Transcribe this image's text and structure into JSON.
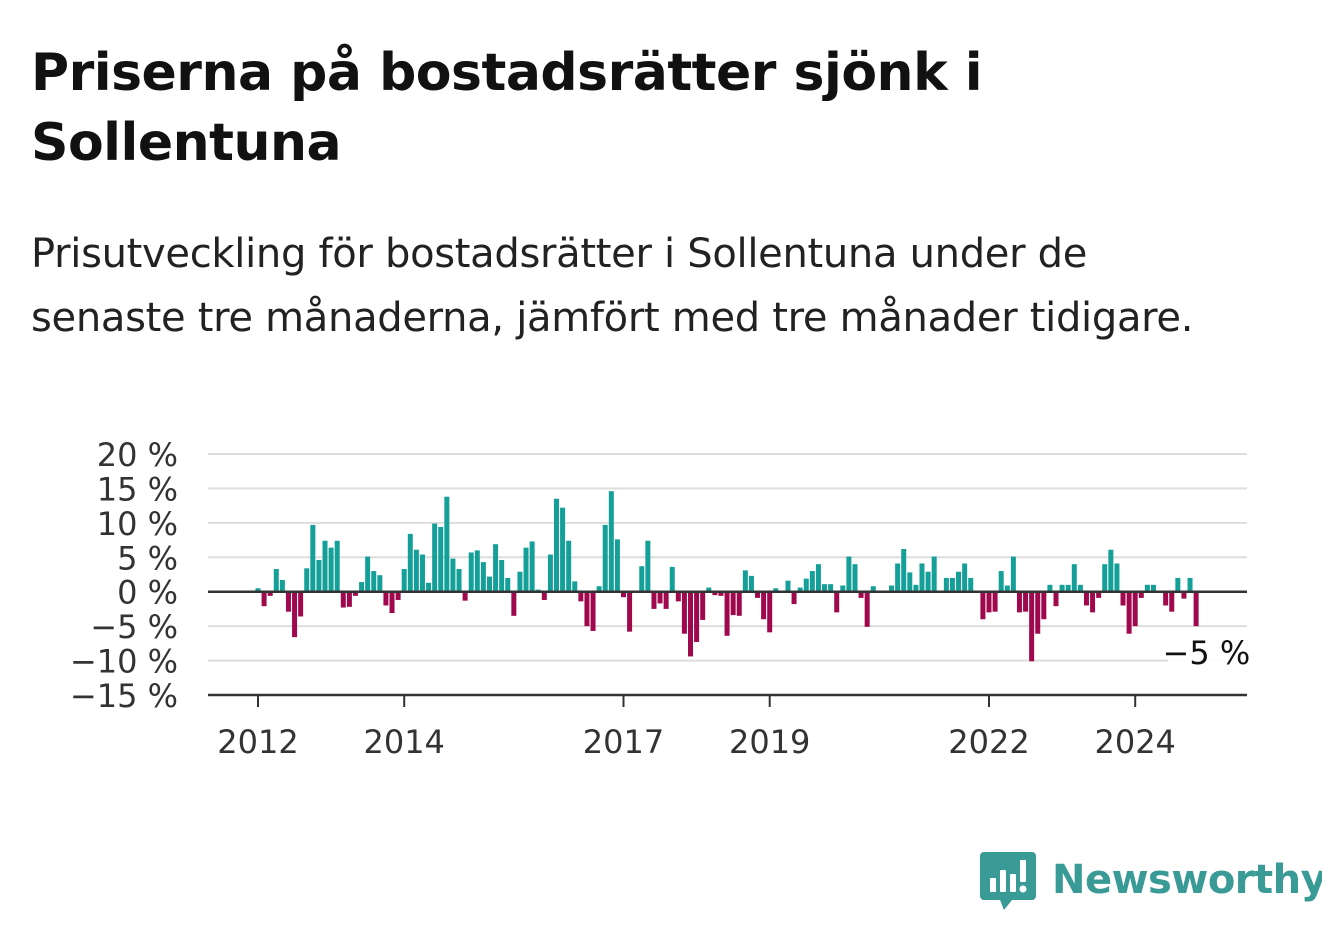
{
  "header": {
    "title": "Priserna på bostadsrätter sjönk i Sollentuna",
    "subtitle": "Prisutveckling för bostadsrätter i Sollentuna under de senaste tre månaderna, jämfört med tre månader tidigare."
  },
  "brand": {
    "name": "Newsworthy",
    "icon": "newsworthy-logo-icon",
    "color": "#3a9a95"
  },
  "colors": {
    "positive": "#14a098",
    "negative": "#a0084e",
    "grid": "#dddddd",
    "axis": "#333333"
  },
  "chart_data": {
    "type": "bar",
    "title": "Priserna på bostadsrätter sjönk i Sollentuna",
    "subtitle": "Prisutveckling för bostadsrätter i Sollentuna under de senaste tre månaderna, jämfört med tre månader tidigare.",
    "x_ticks": [
      {
        "value": 2012.0,
        "label": "2012"
      },
      {
        "value": 2014.0,
        "label": "2014"
      },
      {
        "value": 2017.0,
        "label": "2017"
      },
      {
        "value": 2019.0,
        "label": "2019"
      },
      {
        "value": 2022.0,
        "label": "2022"
      },
      {
        "value": 2024.0,
        "label": "2024"
      }
    ],
    "y_ticks": [
      {
        "value": 20,
        "label": "20 %"
      },
      {
        "value": 15,
        "label": "15 %"
      },
      {
        "value": 10,
        "label": "10 %"
      },
      {
        "value": 5,
        "label": "5 %"
      },
      {
        "value": 0,
        "label": "0 %"
      },
      {
        "value": -5,
        "label": "−5 %"
      },
      {
        "value": -10,
        "label": "−10 %"
      },
      {
        "value": -15,
        "label": "−15 %"
      }
    ],
    "ylim": [
      -15,
      20
    ],
    "xlim": [
      2011.3,
      2025.5
    ],
    "grid": true,
    "start": "2012-01",
    "values": [
      0.5,
      -2.1,
      -0.6,
      3.3,
      1.7,
      -2.9,
      -6.6,
      -3.6,
      3.4,
      9.7,
      4.6,
      7.4,
      6.4,
      7.4,
      -2.3,
      -2.2,
      -0.6,
      1.4,
      5.1,
      3.0,
      2.4,
      -2.0,
      -3.1,
      -1.2,
      3.3,
      8.4,
      6.1,
      5.4,
      1.3,
      9.9,
      9.4,
      13.8,
      4.8,
      3.3,
      -1.3,
      5.7,
      6.0,
      4.3,
      2.2,
      6.9,
      4.6,
      2.0,
      -3.5,
      2.9,
      6.4,
      7.3,
      0.3,
      -1.2,
      5.4,
      13.5,
      12.2,
      7.4,
      1.5,
      -1.4,
      -5.0,
      -5.7,
      0.8,
      9.7,
      14.6,
      7.6,
      -0.8,
      -5.8,
      0.0,
      3.7,
      7.4,
      -2.5,
      -1.7,
      -2.5,
      3.6,
      -1.4,
      -6.1,
      -9.4,
      -7.3,
      -4.1,
      0.6,
      -0.5,
      -0.6,
      -6.4,
      -3.4,
      -3.5,
      3.1,
      2.3,
      -0.9,
      -4.0,
      -5.9,
      0.5,
      0.0,
      1.6,
      -1.8,
      0.6,
      1.9,
      3.0,
      4.0,
      1.1,
      1.1,
      -3.0,
      0.9,
      5.1,
      4.0,
      -0.9,
      -5.1,
      0.8,
      0.0,
      0.0,
      0.9,
      4.1,
      6.2,
      2.8,
      1.0,
      4.1,
      2.9,
      5.1,
      0.0,
      2.0,
      2.0,
      2.9,
      4.1,
      2.0,
      0.0,
      -4.0,
      -3.0,
      -2.9,
      3.0,
      0.9,
      5.1,
      -3.0,
      -2.9,
      -10.1,
      -6.1,
      -4.0,
      1.0,
      -2.1,
      1.0,
      1.0,
      4.0,
      1.0,
      -2.0,
      -3.0,
      -0.9,
      4.0,
      6.1,
      4.1,
      -2.0,
      -6.1,
      -5.0,
      -0.9,
      1.0,
      1.0,
      0.0,
      -2.0,
      -2.9,
      2.0,
      -1.0,
      2.0,
      -5.0
    ],
    "value_labels": [
      {
        "index": 156,
        "value": -5,
        "label": "−5 %"
      }
    ]
  }
}
